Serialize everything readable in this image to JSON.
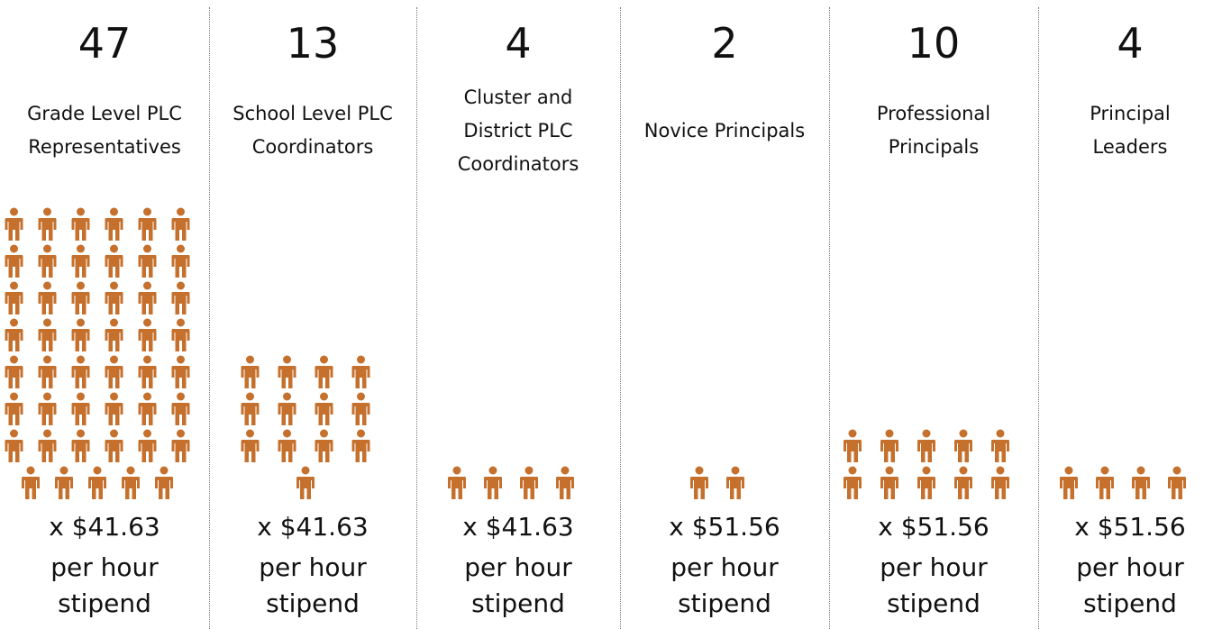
{
  "chart_data": {
    "type": "pictograph",
    "color": "#c5702c",
    "categories": [
      "Grade Level PLC\nRepresentatives",
      "School Level PLC\nCoordinators",
      "Cluster and\nDistrict PLC\nCoordinators",
      "Novice Principals",
      "Professional\nPrincipals",
      "Principal\nLeaders"
    ],
    "values": [
      47,
      13,
      4,
      2,
      10,
      4
    ],
    "rate_labels": [
      "x $41.63",
      "x $41.63",
      "x $41.63",
      "x $51.56",
      "x $51.56",
      "x $51.56"
    ],
    "rate_note": "per hour\nstipend"
  }
}
